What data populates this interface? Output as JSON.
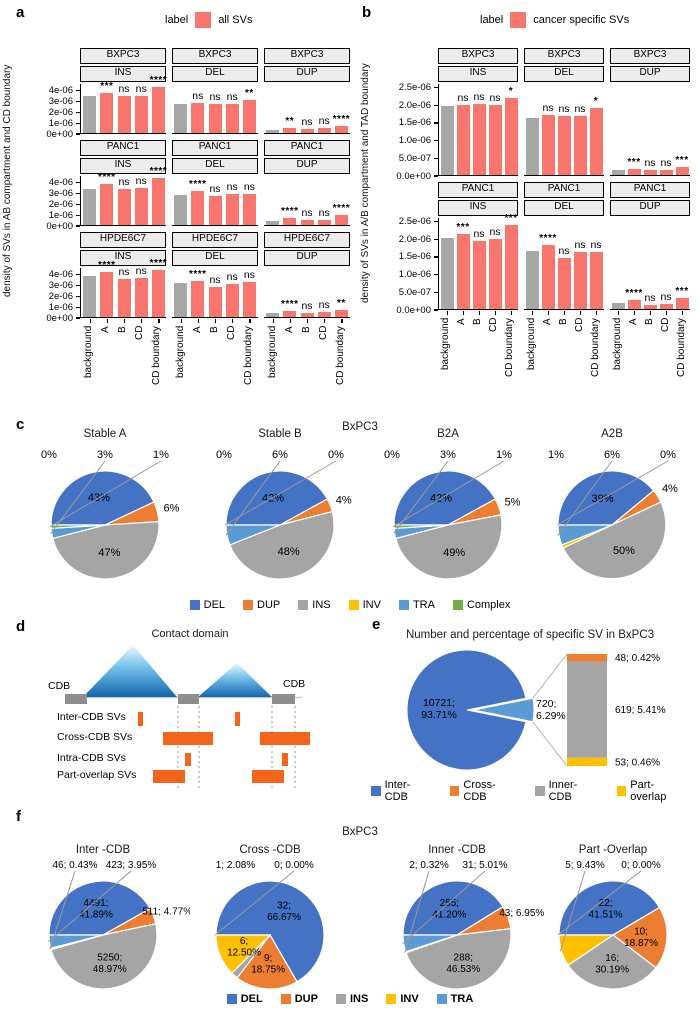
{
  "panel_d": {
    "letter": "d",
    "title": "Contact domain",
    "cdb_left": "CDB",
    "cdb_right": "CDB",
    "row_labels": [
      "Inter-CDB SVs",
      "Cross-CDB SVs",
      "Intra-CDB SVs",
      "Part-overlap SVs"
    ],
    "sv_color": "#F4641C",
    "cdb_color": "#8E8E8E",
    "triangle_color": "#1167AE"
  },
  "chart_data": [
    {
      "id": "a",
      "type": "bar",
      "panel_letter": "a",
      "legend_title": "label",
      "legend_entries": [
        {
          "label": "all SVs",
          "color": "#F8766D"
        }
      ],
      "ylabel": "density of SVs in AB compartment and CD boundary",
      "categories": [
        "background",
        "A",
        "B",
        "CD",
        "CD boundary"
      ],
      "ylim": [
        0,
        4.6e-06
      ],
      "yticks": [
        {
          "value": 4e-06,
          "label": "4e-06"
        },
        {
          "value": 3e-06,
          "label": "3e-06"
        },
        {
          "value": 2e-06,
          "label": "2e-06"
        },
        {
          "value": 1e-06,
          "label": "1e-06"
        },
        {
          "value": 0,
          "label": "0e+00"
        }
      ],
      "background_color": "#A7A7A7",
      "bar_color": "#F8766D",
      "facet_rows": [
        "BXPC3",
        "PANC1",
        "HPDE6C7"
      ],
      "facet_cols": [
        "INS",
        "DEL",
        "DUP"
      ],
      "facets": [
        {
          "row": "BXPC3",
          "col": "INS",
          "values": [
            3.4e-06,
            3.65e-06,
            3.4e-06,
            3.45e-06,
            4.2e-06
          ],
          "significance": [
            "",
            "***",
            "ns",
            "ns",
            "****"
          ]
        },
        {
          "row": "BXPC3",
          "col": "DEL",
          "values": [
            2.65e-06,
            2.8e-06,
            2.7e-06,
            2.7e-06,
            3.05e-06
          ],
          "significance": [
            "",
            "ns",
            "ns",
            "ns",
            "**"
          ]
        },
        {
          "row": "BXPC3",
          "col": "DUP",
          "values": [
            3e-07,
            4.5e-07,
            3.8e-07,
            4.2e-07,
            6.2e-07
          ],
          "significance": [
            "",
            "**",
            "ns",
            "ns",
            "****"
          ]
        },
        {
          "row": "PANC1",
          "col": "INS",
          "values": [
            3.35e-06,
            3.8e-06,
            3.3e-06,
            3.4e-06,
            4.3e-06
          ],
          "significance": [
            "",
            "****",
            "ns",
            "ns",
            "****"
          ]
        },
        {
          "row": "PANC1",
          "col": "DEL",
          "values": [
            2.75e-06,
            3.1e-06,
            2.7e-06,
            2.85e-06,
            2.85e-06
          ],
          "significance": [
            "",
            "****",
            "ns",
            "ns",
            "ns"
          ]
        },
        {
          "row": "PANC1",
          "col": "DUP",
          "values": [
            3.7e-07,
            6.9e-07,
            4.5e-07,
            5e-07,
            9e-07
          ],
          "significance": [
            "",
            "****",
            "ns",
            "ns",
            "****"
          ]
        },
        {
          "row": "HPDE6C7",
          "col": "INS",
          "values": [
            3.75e-06,
            4.1e-06,
            3.5e-06,
            3.6e-06,
            4.3e-06
          ],
          "significance": [
            "",
            "****",
            "ns",
            "ns",
            "****"
          ]
        },
        {
          "row": "HPDE6C7",
          "col": "DEL",
          "values": [
            3.1e-06,
            3.3e-06,
            2.8e-06,
            3.05e-06,
            3.2e-06
          ],
          "significance": [
            "",
            "****",
            "ns",
            "ns",
            "ns"
          ]
        },
        {
          "row": "HPDE6C7",
          "col": "DUP",
          "values": [
            3.5e-07,
            5.5e-07,
            4e-07,
            4.5e-07,
            6e-07
          ],
          "significance": [
            "",
            "****",
            "ns",
            "ns",
            "**"
          ]
        }
      ]
    },
    {
      "id": "b",
      "type": "bar",
      "panel_letter": "b",
      "legend_title": "label",
      "legend_entries": [
        {
          "label": "cancer specific SVs",
          "color": "#F8766D"
        }
      ],
      "ylabel": "density of SVs in A/B compartment and TAD boundary",
      "categories": [
        "background",
        "A",
        "B",
        "CD",
        "CD boundary"
      ],
      "ylim": [
        0,
        2.6e-06
      ],
      "yticks": [
        {
          "value": 2.5e-06,
          "label": "2.5e-06"
        },
        {
          "value": 2e-06,
          "label": "2.0e-06"
        },
        {
          "value": 1.5e-06,
          "label": "1.5e-06"
        },
        {
          "value": 1e-06,
          "label": "1.0e-06"
        },
        {
          "value": 5e-07,
          "label": "5.0e-07"
        },
        {
          "value": 0,
          "label": "0.0e+00"
        }
      ],
      "background_color": "#A7A7A7",
      "bar_color": "#F8766D",
      "facet_rows": [
        "BXPC3",
        "PANC1"
      ],
      "facet_cols": [
        "INS",
        "DEL",
        "DUP"
      ],
      "facets": [
        {
          "row": "BXPC3",
          "col": "INS",
          "values": [
            1.95e-06,
            1.97e-06,
            2e-06,
            1.97e-06,
            2.18e-06
          ],
          "significance": [
            "",
            "ns",
            "ns",
            "ns",
            "*"
          ]
        },
        {
          "row": "BXPC3",
          "col": "DEL",
          "values": [
            1.6e-06,
            1.7e-06,
            1.67e-06,
            1.67e-06,
            1.88e-06
          ],
          "significance": [
            "",
            "ns",
            "ns",
            "ns",
            "*"
          ]
        },
        {
          "row": "BXPC3",
          "col": "DUP",
          "values": [
            1.3e-07,
            1.8e-07,
            1.3e-07,
            1.4e-07,
            2.4e-07
          ],
          "significance": [
            "",
            "***",
            "ns",
            "ns",
            "***"
          ]
        },
        {
          "row": "PANC1",
          "col": "INS",
          "values": [
            2e-06,
            2.12e-06,
            1.91e-06,
            1.97e-06,
            2.38e-06
          ],
          "significance": [
            "",
            "***",
            "ns",
            "ns",
            "***"
          ]
        },
        {
          "row": "PANC1",
          "col": "DEL",
          "values": [
            1.64e-06,
            1.81e-06,
            1.45e-06,
            1.6e-06,
            1.62e-06
          ],
          "significance": [
            "",
            "****",
            "ns",
            "ns",
            "ns"
          ]
        },
        {
          "row": "PANC1",
          "col": "DUP",
          "values": [
            1.6e-07,
            2.5e-07,
            1.1e-07,
            1.5e-07,
            3e-07
          ],
          "significance": [
            "",
            "****",
            "ns",
            "ns",
            "***"
          ]
        }
      ]
    },
    {
      "id": "c",
      "type": "pie",
      "panel_letter": "c",
      "title": "BxPC3",
      "legend": [
        {
          "label": "DEL",
          "color": "#4472C4"
        },
        {
          "label": "DUP",
          "color": "#ED7D31"
        },
        {
          "label": "INS",
          "color": "#A5A5A5"
        },
        {
          "label": "INV",
          "color": "#FFC000"
        },
        {
          "label": "TRA",
          "color": "#5B9BD5"
        },
        {
          "label": "Complex",
          "color": "#70AD47"
        }
      ],
      "pies": [
        {
          "title": "Stable A",
          "values": [
            43,
            6,
            47,
            0,
            3,
            1
          ],
          "labels": [
            "43%",
            "6%",
            "47%",
            "0%",
            "3%",
            "1%"
          ]
        },
        {
          "title": "Stable B",
          "values": [
            42,
            4,
            48,
            0,
            6,
            0
          ],
          "labels": [
            "42%",
            "4%",
            "48%",
            "0%",
            "6%",
            "0%"
          ]
        },
        {
          "title": "B2A",
          "values": [
            42,
            5,
            49,
            0,
            3,
            1
          ],
          "labels": [
            "42%",
            "5%",
            "49%",
            "0%",
            "3%",
            "1%"
          ]
        },
        {
          "title": "A2B",
          "values": [
            39,
            4,
            50,
            1,
            6,
            0
          ],
          "labels": [
            "39%",
            "4%",
            "50%",
            "1%",
            "6%",
            "0%"
          ]
        }
      ]
    },
    {
      "id": "e",
      "type": "pie-of-bar",
      "panel_letter": "e",
      "title": "Number and percentage of specific SV in BxPC3",
      "legend": [
        {
          "label": "Inter-CDB",
          "color": "#4472C4"
        },
        {
          "label": "Cross-CDB",
          "color": "#ED7D31"
        },
        {
          "label": "Inner-CDB",
          "color": "#A5A5A5"
        },
        {
          "label": "Part-overlap",
          "color": "#FFC000"
        }
      ],
      "main_slice": {
        "label": "10721; 93.71%",
        "value": 10721,
        "color": "#4472C4"
      },
      "wedge": {
        "label": "720; 6.29%",
        "value": 720,
        "color": "#5B9BD5"
      },
      "bar_segments": [
        {
          "label": "48; 0.42%",
          "value": 48,
          "color": "#ED7D31"
        },
        {
          "label": "619; 5.41%",
          "value": 619,
          "color": "#A5A5A5"
        },
        {
          "label": "53; 0.46%",
          "value": 53,
          "color": "#FFC000"
        }
      ]
    },
    {
      "id": "f",
      "type": "pie",
      "panel_letter": "f",
      "title": "BxPC3",
      "legend": [
        {
          "label": "DEL",
          "color": "#4472C4"
        },
        {
          "label": "DUP",
          "color": "#ED7D31"
        },
        {
          "label": "INS",
          "color": "#A5A5A5"
        },
        {
          "label": "INV",
          "color": "#FFC000"
        },
        {
          "label": "TRA",
          "color": "#5B9BD5"
        }
      ],
      "pies": [
        {
          "title": "Inter -CDB",
          "values": [
            4491,
            511,
            5250,
            46,
            423
          ],
          "labels": [
            "4491; 41.89%",
            "511; 4.77%",
            "5250; 48.97%",
            "46; 0.43%",
            "423; 3.95%"
          ]
        },
        {
          "title": "Cross -CDB",
          "values": [
            32,
            9,
            1,
            6,
            0
          ],
          "labels": [
            "32; 66.67%",
            "9; 18.75%",
            "1; 2.08%",
            "6; 12.50%",
            "0; 0.00%"
          ]
        },
        {
          "title": "Inner -CDB",
          "values": [
            255,
            43,
            288,
            2,
            31
          ],
          "labels": [
            "255; 41.20%",
            "43; 6.95%",
            "288; 46.53%",
            "2; 0.32%",
            "31; 5.01%"
          ]
        },
        {
          "title": "Part -Overlap",
          "values": [
            22,
            10,
            16,
            5,
            0
          ],
          "labels": [
            "22; 41.51%",
            "10; 18.87%",
            "16; 30.19%",
            "5; 9.43%",
            "0; 0.00%"
          ]
        }
      ]
    }
  ]
}
